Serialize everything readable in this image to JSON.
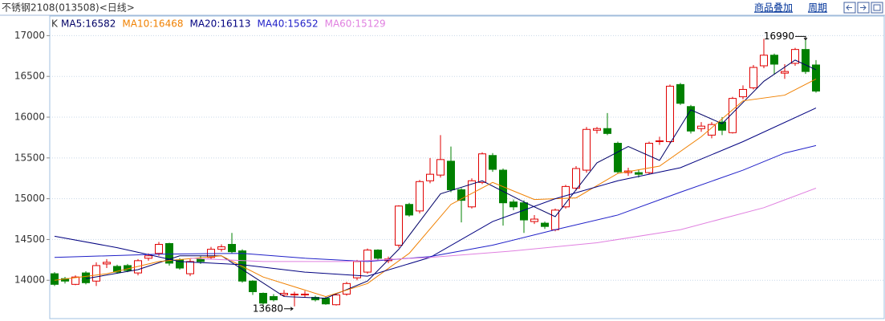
{
  "chart_data": {
    "type": "candlestick",
    "title": "不锈钢2108(013508)<日线>",
    "buttons": [
      "商品叠加",
      "周期"
    ],
    "kline_label": "K",
    "up_color": "#e00000",
    "down_color": "#008000",
    "ylim": [
      13530,
      17240
    ],
    "yticks": [
      14000,
      14500,
      15000,
      15500,
      16000,
      16500,
      17000
    ],
    "grid": true,
    "open": [
      14080,
      14020,
      13950,
      14090,
      13990,
      14200,
      14170,
      14180,
      14090,
      14270,
      14330,
      14450,
      14250,
      14080,
      14260,
      14280,
      14380,
      14440,
      14360,
      13990,
      13840,
      13800,
      13820,
      13820,
      13820,
      13790,
      13780,
      13700,
      13830,
      14030,
      14100,
      14370,
      14240,
      14430,
      14930,
      14850,
      15220,
      15290,
      15460,
      15110,
      14900,
      15200,
      15530,
      15350,
      14960,
      14950,
      14720,
      14700,
      14620,
      14900,
      15130,
      15350,
      15840,
      15860,
      15680,
      15320,
      15320,
      15320,
      15700,
      15700,
      16400,
      16130,
      15860,
      15780,
      15940,
      15810,
      16250,
      16360,
      16630,
      16760,
      16540,
      16660,
      16830,
      16640
    ],
    "high": [
      14100,
      14040,
      14060,
      14110,
      14220,
      14260,
      14190,
      14200,
      14260,
      14330,
      14470,
      14460,
      14270,
      14260,
      14300,
      14410,
      14440,
      14580,
      14380,
      14000,
      13850,
      13830,
      13880,
      13860,
      13870,
      13810,
      13800,
      13830,
      13980,
      14250,
      14390,
      14380,
      14290,
      14920,
      14950,
      15230,
      15500,
      15780,
      15640,
      15130,
      15250,
      15570,
      15560,
      15370,
      14990,
      14980,
      14800,
      14720,
      14880,
      15170,
      15400,
      15880,
      15880,
      16050,
      15700,
      15380,
      15360,
      15700,
      15760,
      16400,
      16420,
      16150,
      15940,
      15940,
      16000,
      16250,
      16390,
      16640,
      16960,
      16780,
      16650,
      16850,
      16990,
      16700
    ],
    "low": [
      13930,
      13960,
      13940,
      13950,
      13930,
      14150,
      14080,
      14100,
      14060,
      14240,
      14300,
      14180,
      14130,
      14050,
      14200,
      14260,
      14350,
      14330,
      13970,
      13820,
      13700,
      13740,
      13800,
      13680,
      13790,
      13740,
      13700,
      13690,
      13810,
      14000,
      14080,
      14240,
      14210,
      14400,
      14780,
      14820,
      15190,
      15260,
      15080,
      14710,
      14880,
      15180,
      15330,
      14670,
      14860,
      14580,
      14690,
      14630,
      14600,
      14880,
      15100,
      15320,
      15800,
      15780,
      15310,
      15280,
      15260,
      15300,
      15660,
      15680,
      16150,
      15800,
      15820,
      15740,
      15780,
      15800,
      16220,
      16340,
      16600,
      16520,
      16470,
      16630,
      16530,
      16300
    ],
    "close": [
      13950,
      13990,
      14040,
      13970,
      14180,
      14220,
      14100,
      14120,
      14240,
      14300,
      14440,
      14210,
      14150,
      14230,
      14230,
      14380,
      14410,
      14350,
      13990,
      13860,
      13720,
      13760,
      13840,
      13830,
      13830,
      13760,
      13710,
      13820,
      13960,
      14230,
      14370,
      14270,
      14260,
      14910,
      14800,
      15210,
      15300,
      15480,
      15110,
      14980,
      15220,
      15550,
      15360,
      14950,
      14900,
      14740,
      14750,
      14660,
      14860,
      15150,
      15370,
      15850,
      15860,
      15800,
      15330,
      15340,
      15300,
      15680,
      15710,
      16380,
      16170,
      15830,
      15890,
      15910,
      15840,
      16230,
      16340,
      16610,
      16760,
      16650,
      16560,
      16830,
      16560,
      16320
    ],
    "series": [
      {
        "name": "MA5:16582",
        "color": "#000066",
        "x": [
          3,
          8,
          12,
          16,
          19,
          22,
          26,
          30,
          33,
          37,
          41,
          45,
          48,
          52,
          55,
          58,
          61,
          64,
          68,
          71,
          73
        ],
        "values": [
          14020,
          14130,
          14300,
          14300,
          14050,
          13800,
          13780,
          13990,
          14380,
          15060,
          15220,
          14960,
          14780,
          15440,
          15640,
          15470,
          16090,
          15920,
          16440,
          16700,
          16582
        ]
      },
      {
        "name": "MA10:16468",
        "color": "#f08000",
        "x": [
          0,
          5,
          10,
          16,
          20,
          26,
          30,
          34,
          38,
          42,
          46,
          50,
          54,
          58,
          62,
          66,
          70,
          73
        ],
        "values": [
          14000,
          14080,
          14230,
          14300,
          14040,
          13800,
          13960,
          14330,
          14930,
          15200,
          14990,
          15010,
          15310,
          15400,
          15760,
          16200,
          16270,
          16468
        ]
      },
      {
        "name": "MA20:16113",
        "color": "#000080",
        "x": [
          0,
          6,
          12,
          18,
          24,
          30,
          36,
          42,
          48,
          54,
          60,
          66,
          73
        ],
        "values": [
          14540,
          14400,
          14230,
          14190,
          14100,
          14050,
          14280,
          14720,
          15000,
          15220,
          15380,
          15700,
          16113
        ]
      },
      {
        "name": "MA40:15652",
        "color": "#2020c8",
        "x": [
          0,
          10,
          18,
          24,
          30,
          36,
          42,
          48,
          54,
          60,
          66,
          70,
          73
        ],
        "values": [
          14280,
          14320,
          14330,
          14270,
          14230,
          14290,
          14430,
          14620,
          14800,
          15080,
          15350,
          15560,
          15652
        ]
      },
      {
        "name": "MA60:15129",
        "color": "#e080e0",
        "x": [
          13,
          20,
          28,
          36,
          44,
          52,
          60,
          68,
          73
        ],
        "values": [
          14270,
          14230,
          14230,
          14280,
          14360,
          14460,
          14620,
          14890,
          15129
        ]
      }
    ]
  }
}
